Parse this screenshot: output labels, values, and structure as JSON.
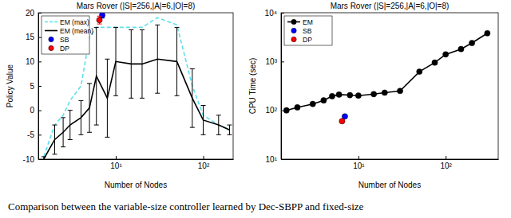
{
  "chart_data": [
    {
      "type": "line",
      "title": "Mars Rover (|S|=256,|A|=6,|O|=8)",
      "x_label": "Number of Nodes",
      "y_label": "Policy Value",
      "log": "x",
      "legend": "upper-left",
      "xlim": [
        1.3,
        220
      ],
      "xticks": [
        {
          "value": 10,
          "label": "10¹"
        },
        {
          "value": 100,
          "label": "10²"
        }
      ],
      "ylim": [
        -10,
        20
      ],
      "yticks": [
        -10,
        -5,
        0,
        5,
        10,
        15,
        20
      ],
      "series": [
        {
          "name": "EM (max)",
          "color": "#5ce1ec",
          "line_style": "dashed",
          "marker": "none",
          "x": [
            1.5,
            2,
            2.5,
            3,
            4,
            5,
            6,
            8,
            10,
            15,
            20,
            30,
            50,
            75,
            100,
            150,
            200
          ],
          "values": [
            -9.5,
            -3,
            -1,
            2,
            5,
            15,
            17,
            17,
            17,
            17,
            17,
            19,
            17.5,
            5,
            -1,
            -3,
            -4
          ]
        },
        {
          "name": "EM (mean)",
          "color": "#000000",
          "line_style": "solid",
          "marker": "none",
          "x": [
            1.5,
            2,
            2.5,
            3,
            4,
            5,
            6,
            8,
            10,
            15,
            20,
            30,
            50,
            75,
            100,
            150,
            200
          ],
          "values": [
            -10,
            -6,
            -4.5,
            -3,
            -1.5,
            0.5,
            7,
            2.5,
            10,
            9.5,
            9.5,
            10.5,
            10,
            2.5,
            -2,
            -3,
            -4
          ],
          "errors": [
            0.5,
            3,
            3,
            3,
            3.5,
            5,
            10,
            8,
            7,
            7,
            7,
            7,
            7,
            6,
            3,
            2,
            1
          ]
        },
        {
          "name": "SB",
          "color": "#0000ff",
          "line_style": "none",
          "marker": "circle",
          "x": [
            7
          ],
          "values": [
            19.5
          ],
          "errors": [
            0.6
          ]
        },
        {
          "name": "DP",
          "color": "#ff0000",
          "line_style": "none",
          "marker": "circle",
          "x": [
            6.5
          ],
          "values": [
            18.5
          ],
          "errors": [
            0.8
          ]
        }
      ]
    },
    {
      "type": "line",
      "title": "Mars Rover (|S|=256,|A|=6,|O|=8)",
      "x_label": "Number of Nodes",
      "y_label": "CPU Time (sec)",
      "log": true,
      "legend": "upper-left",
      "xlim": [
        1.3,
        400
      ],
      "xticks": [
        {
          "value": 10,
          "label": "10¹"
        },
        {
          "value": 100,
          "label": "10²"
        }
      ],
      "ylim": [
        10,
        10000
      ],
      "yticks": [
        {
          "value": 10,
          "label": "10¹"
        },
        {
          "value": 100,
          "label": "10²"
        },
        {
          "value": 1000,
          "label": "10³"
        },
        {
          "value": 10000,
          "label": "10⁴"
        }
      ],
      "series": [
        {
          "name": "EM",
          "color": "#000000",
          "line_style": "solid",
          "marker": "circle",
          "x": [
            1.5,
            2,
            3,
            4,
            5,
            6,
            8,
            10,
            15,
            20,
            30,
            50,
            75,
            100,
            150,
            200,
            300
          ],
          "values": [
            100,
            115,
            135,
            160,
            195,
            210,
            205,
            200,
            215,
            230,
            250,
            620,
            950,
            1400,
            1800,
            2400,
            3800
          ]
        },
        {
          "name": "SB",
          "color": "#0000ff",
          "line_style": "none",
          "marker": "circle",
          "x": [
            7
          ],
          "values": [
            75
          ]
        },
        {
          "name": "DP",
          "color": "#ff0000",
          "line_style": "none",
          "marker": "circle",
          "x": [
            6.5
          ],
          "values": [
            60
          ]
        }
      ]
    }
  ],
  "caption": "Comparison between the variable-size controller learned by Dec-SBPP and fixed-size"
}
